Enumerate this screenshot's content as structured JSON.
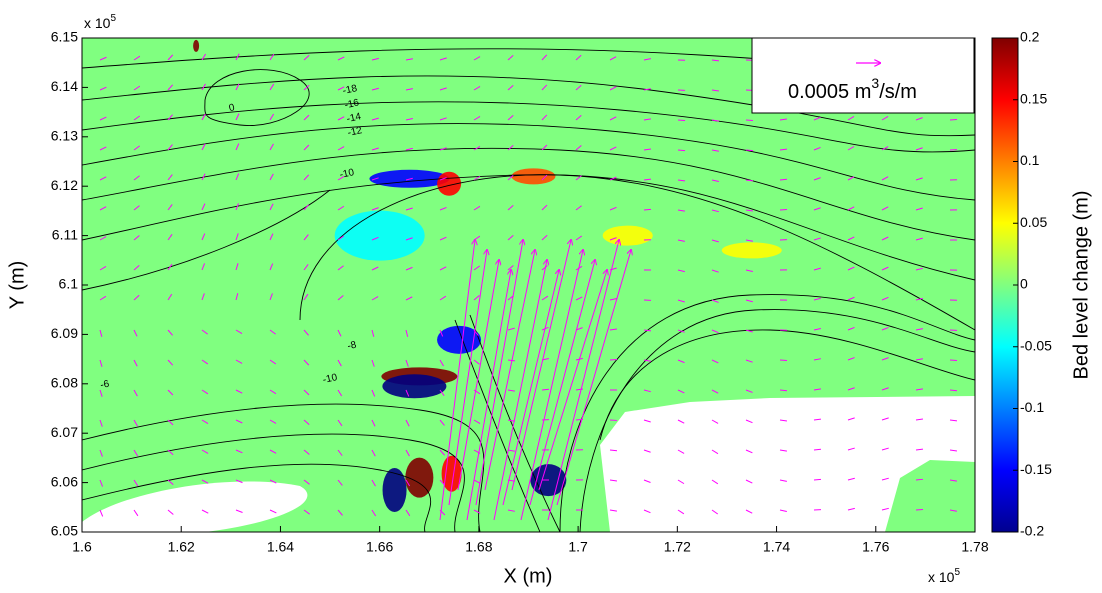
{
  "chart_data": {
    "type": "heatmap",
    "x_label": "X (m)",
    "y_label": "Y (m)",
    "colorbar_label": "Bed level change (m)",
    "xlim": [
      1.6,
      1.78
    ],
    "xticks": [
      1.6,
      1.62,
      1.64,
      1.66,
      1.68,
      1.7,
      1.72,
      1.74,
      1.76,
      1.78
    ],
    "ylim": [
      6.05,
      6.15
    ],
    "yticks": [
      6.05,
      6.06,
      6.07,
      6.08,
      6.09,
      6.1,
      6.11,
      6.12,
      6.13,
      6.14,
      6.15
    ],
    "axis_multiplier": {
      "base": "x 10",
      "exponent": "5"
    },
    "colormap": "jet",
    "clim": [
      -0.2,
      0.2
    ],
    "cticks": [
      -0.2,
      -0.15,
      -0.1,
      -0.05,
      0,
      0.05,
      0.1,
      0.15,
      0.2
    ],
    "background_value": 0,
    "reference_vector": {
      "color": "#ff00ff",
      "value_text": "0.0005 m",
      "unit_exponent": "3",
      "unit_tail": "/s/m"
    },
    "contour_labels": [
      {
        "value": -18,
        "x": 1.654,
        "y": 6.1395
      },
      {
        "value": -16,
        "x": 1.6544,
        "y": 6.1366
      },
      {
        "value": -14,
        "x": 1.6548,
        "y": 6.1338
      },
      {
        "value": -12,
        "x": 1.655,
        "y": 6.131
      },
      {
        "value": -10,
        "x": 1.6534,
        "y": 6.1225
      },
      {
        "value": 0,
        "x": 1.6302,
        "y": 6.1358
      },
      {
        "value": -8,
        "x": 1.6544,
        "y": 6.0877
      },
      {
        "value": -10,
        "x": 1.65,
        "y": 6.081
      },
      {
        "value": -6,
        "x": 1.6046,
        "y": 6.0798
      }
    ],
    "features": [
      {
        "x": 1.668,
        "y": 6.0815,
        "value": 0.2
      },
      {
        "x": 1.667,
        "y": 6.0795,
        "value": -0.2
      },
      {
        "x": 1.694,
        "y": 6.0605,
        "value": -0.2
      },
      {
        "x": 1.668,
        "y": 6.061,
        "value": 0.2
      },
      {
        "x": 1.6745,
        "y": 6.0618,
        "value": 0.15
      },
      {
        "x": 1.663,
        "y": 6.0585,
        "value": -0.2
      },
      {
        "x": 1.666,
        "y": 6.1215,
        "value": -0.15
      },
      {
        "x": 1.674,
        "y": 6.1205,
        "value": 0.15
      },
      {
        "x": 1.691,
        "y": 6.122,
        "value": 0.12
      },
      {
        "x": 1.676,
        "y": 6.0889,
        "value": -0.15
      },
      {
        "x": 1.66,
        "y": 6.11,
        "value": -0.05
      },
      {
        "x": 1.71,
        "y": 6.11,
        "value": 0.05
      },
      {
        "x": 1.735,
        "y": 6.107,
        "value": 0.05
      },
      {
        "x": 1.623,
        "y": 6.1484,
        "value": 0.2
      }
    ]
  }
}
